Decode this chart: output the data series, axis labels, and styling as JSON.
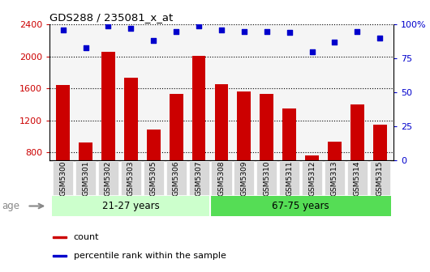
{
  "title": "GDS288 / 235081_x_at",
  "samples": [
    "GSM5300",
    "GSM5301",
    "GSM5302",
    "GSM5303",
    "GSM5305",
    "GSM5306",
    "GSM5307",
    "GSM5308",
    "GSM5309",
    "GSM5310",
    "GSM5311",
    "GSM5312",
    "GSM5313",
    "GSM5314",
    "GSM5315"
  ],
  "bar_values": [
    1640,
    920,
    2060,
    1730,
    1090,
    1530,
    2010,
    1650,
    1560,
    1530,
    1350,
    760,
    940,
    1400,
    1150
  ],
  "percentile_values": [
    96,
    83,
    99,
    97,
    88,
    95,
    99,
    96,
    95,
    95,
    94,
    80,
    87,
    95,
    90
  ],
  "bar_color": "#CC0000",
  "dot_color": "#0000CC",
  "ylim_left": [
    700,
    2400
  ],
  "ylim_right": [
    0,
    100
  ],
  "yticks_left": [
    800,
    1200,
    1600,
    2000,
    2400
  ],
  "yticks_right": [
    0,
    25,
    50,
    75,
    100
  ],
  "ytick_labels_right": [
    "0",
    "25",
    "50",
    "75",
    "100%"
  ],
  "group1_label": "21-27 years",
  "group2_label": "67-75 years",
  "group1_count": 7,
  "group2_count": 8,
  "age_label": "age",
  "legend_bar_label": "count",
  "legend_dot_label": "percentile rank within the sample",
  "plot_bg_color": "#f5f5f5",
  "group1_color": "#ccffcc",
  "group2_color": "#55dd55",
  "xtick_bg_color": "#d8d8d8",
  "grid_color": "#000000"
}
